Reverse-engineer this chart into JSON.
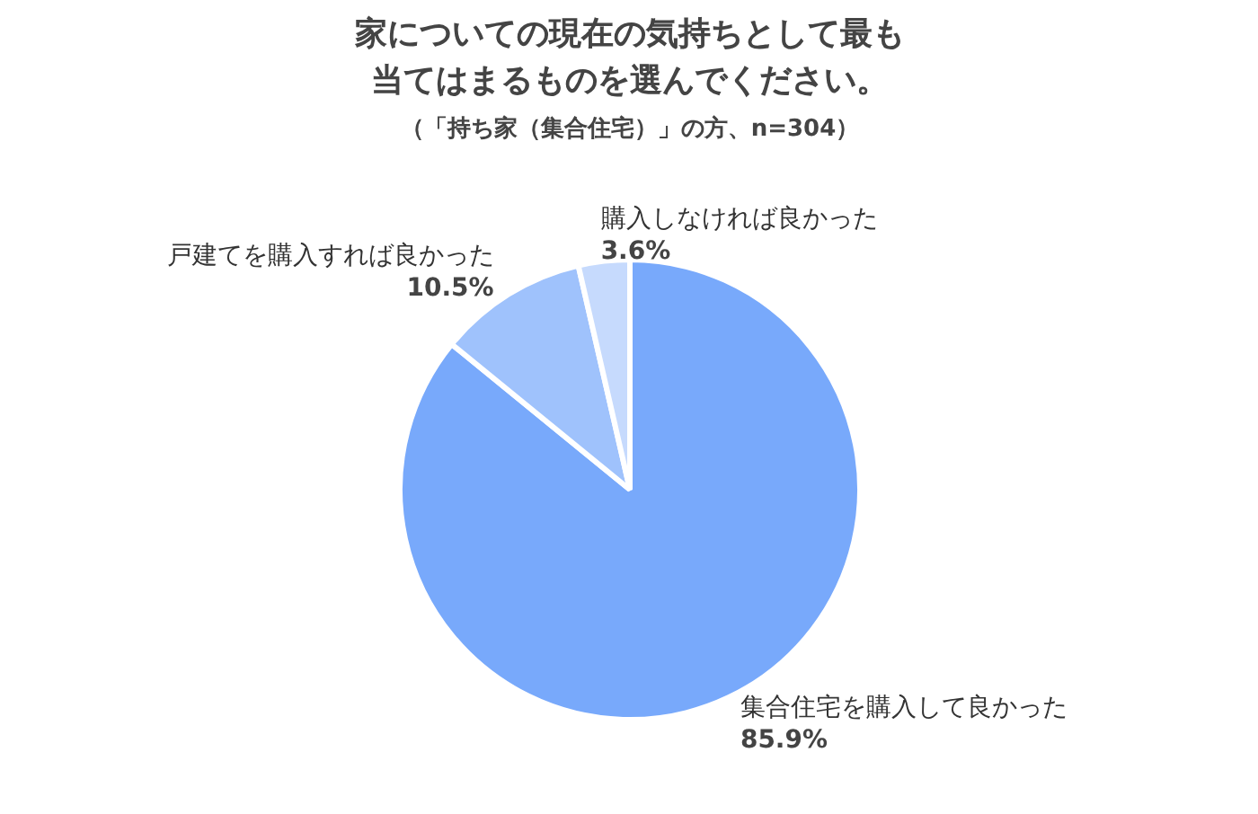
{
  "chart_data": {
    "type": "pie",
    "title": "家についての現在の気持ちとして最も当てはまるものを選んでください。",
    "subtitle": "（「持ち家（集合住宅）」の方、n=304）",
    "categories": [
      "集合住宅を購入して良かった",
      "戸建てを購入すれば良かった",
      "購入しなければ良かった"
    ],
    "values": [
      85.9,
      10.5,
      3.6
    ],
    "value_labels": [
      "85.9%",
      "10.5%",
      "3.6%"
    ],
    "colors": [
      "#78a9fb",
      "#9fc2fc",
      "#c6dafd"
    ]
  }
}
